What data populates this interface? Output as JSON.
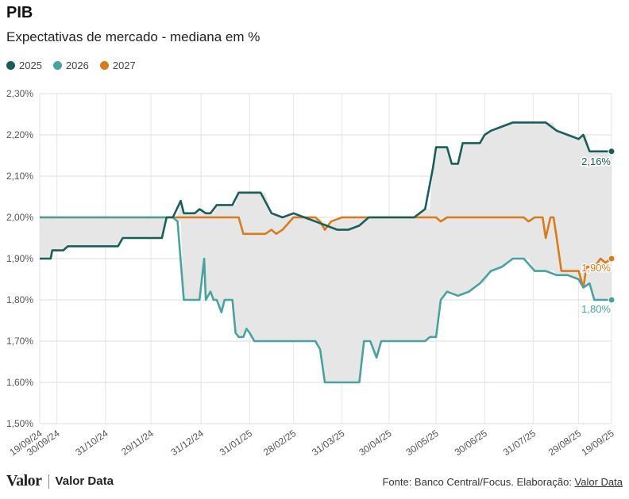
{
  "header": {
    "title": "PIB",
    "subtitle": "Expectativas de mercado - mediana em %"
  },
  "legend": [
    {
      "label": "2025",
      "color": "#1a5e58"
    },
    {
      "label": "2026",
      "color": "#48a3a0"
    },
    {
      "label": "2027",
      "color": "#d97b1a"
    }
  ],
  "footer": {
    "logo_valor": "Valor",
    "logo_valordata": "Valor Data",
    "source_prefix": "Fonte: Banco Central/Focus. Elaboração: ",
    "source_link": "Valor Data"
  },
  "chart_data": {
    "type": "line",
    "title": "PIB",
    "subtitle": "Expectativas de mercado - mediana em %",
    "ylim": [
      1.5,
      2.3
    ],
    "yticks": [
      "1,50%",
      "1,60%",
      "1,70%",
      "1,80%",
      "1,90%",
      "2,00%",
      "2,10%",
      "2,20%",
      "2,30%"
    ],
    "ytick_values": [
      1.5,
      1.6,
      1.7,
      1.8,
      1.9,
      2.0,
      2.1,
      2.2,
      2.3
    ],
    "xlim": [
      "2024-09-19",
      "2025-09-19"
    ],
    "xticks": [
      "19/09/24",
      "30/09/24",
      "31/10/24",
      "29/11/24",
      "31/12/24",
      "31/01/25",
      "28/02/25",
      "31/03/25",
      "30/04/25",
      "30/05/25",
      "30/06/25",
      "31/07/25",
      "29/08/25",
      "19/09/25"
    ],
    "xtick_dates": [
      "2024-09-19",
      "2024-09-30",
      "2024-10-31",
      "2024-11-29",
      "2024-12-31",
      "2025-01-31",
      "2025-02-28",
      "2025-03-31",
      "2025-04-30",
      "2025-05-30",
      "2025-06-30",
      "2025-07-31",
      "2025-08-29",
      "2025-09-19"
    ],
    "grid": true,
    "legend_position": "top-left",
    "shaded_band": "range between min and max of series",
    "end_labels": {
      "2025": "2,16%",
      "2026": "1,80%",
      "2027": "1,90%"
    },
    "series": [
      {
        "name": "2025",
        "color": "#1a5e58",
        "points": [
          [
            "2024-09-19",
            1.9
          ],
          [
            "2024-09-26",
            1.9
          ],
          [
            "2024-09-27",
            1.92
          ],
          [
            "2024-10-01",
            1.92
          ],
          [
            "2024-10-04",
            1.92
          ],
          [
            "2024-10-07",
            1.93
          ],
          [
            "2024-10-18",
            1.93
          ],
          [
            "2024-10-21",
            1.93
          ],
          [
            "2024-11-01",
            1.93
          ],
          [
            "2024-11-08",
            1.93
          ],
          [
            "2024-11-11",
            1.95
          ],
          [
            "2024-11-29",
            1.95
          ],
          [
            "2024-12-06",
            1.95
          ],
          [
            "2024-12-09",
            2.0
          ],
          [
            "2024-12-13",
            2.0
          ],
          [
            "2024-12-18",
            2.04
          ],
          [
            "2024-12-20",
            2.01
          ],
          [
            "2024-12-27",
            2.01
          ],
          [
            "2024-12-30",
            2.02
          ],
          [
            "2025-01-03",
            2.01
          ],
          [
            "2025-01-06",
            2.01
          ],
          [
            "2025-01-10",
            2.03
          ],
          [
            "2025-01-20",
            2.03
          ],
          [
            "2025-01-24",
            2.06
          ],
          [
            "2025-01-29",
            2.06
          ],
          [
            "2025-02-07",
            2.06
          ],
          [
            "2025-02-14",
            2.01
          ],
          [
            "2025-02-21",
            2.0
          ],
          [
            "2025-02-28",
            2.01
          ],
          [
            "2025-03-07",
            2.0
          ],
          [
            "2025-03-14",
            1.99
          ],
          [
            "2025-03-21",
            1.98
          ],
          [
            "2025-03-28",
            1.97
          ],
          [
            "2025-04-04",
            1.97
          ],
          [
            "2025-04-11",
            1.98
          ],
          [
            "2025-04-17",
            2.0
          ],
          [
            "2025-05-16",
            2.0
          ],
          [
            "2025-05-23",
            2.02
          ],
          [
            "2025-05-28",
            2.12
          ],
          [
            "2025-05-30",
            2.17
          ],
          [
            "2025-06-06",
            2.17
          ],
          [
            "2025-06-09",
            2.13
          ],
          [
            "2025-06-13",
            2.13
          ],
          [
            "2025-06-16",
            2.18
          ],
          [
            "2025-06-27",
            2.18
          ],
          [
            "2025-06-30",
            2.2
          ],
          [
            "2025-07-04",
            2.21
          ],
          [
            "2025-07-11",
            2.22
          ],
          [
            "2025-07-18",
            2.23
          ],
          [
            "2025-07-25",
            2.23
          ],
          [
            "2025-08-01",
            2.23
          ],
          [
            "2025-08-08",
            2.23
          ],
          [
            "2025-08-15",
            2.21
          ],
          [
            "2025-08-22",
            2.2
          ],
          [
            "2025-08-29",
            2.19
          ],
          [
            "2025-09-01",
            2.2
          ],
          [
            "2025-09-05",
            2.16
          ],
          [
            "2025-09-12",
            2.16
          ],
          [
            "2025-09-19",
            2.16
          ]
        ]
      },
      {
        "name": "2026",
        "color": "#48a3a0",
        "points": [
          [
            "2024-09-19",
            2.0
          ],
          [
            "2024-12-13",
            2.0
          ],
          [
            "2024-12-16",
            1.99
          ],
          [
            "2024-12-20",
            1.8
          ],
          [
            "2024-12-27",
            1.8
          ],
          [
            "2024-12-30",
            1.8
          ],
          [
            "2025-01-02",
            1.9
          ],
          [
            "2025-01-03",
            1.8
          ],
          [
            "2025-01-06",
            1.82
          ],
          [
            "2025-01-08",
            1.8
          ],
          [
            "2025-01-10",
            1.8
          ],
          [
            "2025-01-13",
            1.77
          ],
          [
            "2025-01-15",
            1.8
          ],
          [
            "2025-01-20",
            1.8
          ],
          [
            "2025-01-22",
            1.72
          ],
          [
            "2025-01-24",
            1.71
          ],
          [
            "2025-01-27",
            1.71
          ],
          [
            "2025-01-29",
            1.73
          ],
          [
            "2025-01-31",
            1.72
          ],
          [
            "2025-02-03",
            1.7
          ],
          [
            "2025-02-07",
            1.7
          ],
          [
            "2025-03-14",
            1.7
          ],
          [
            "2025-03-17",
            1.68
          ],
          [
            "2025-03-20",
            1.6
          ],
          [
            "2025-04-11",
            1.6
          ],
          [
            "2025-04-14",
            1.7
          ],
          [
            "2025-04-18",
            1.7
          ],
          [
            "2025-04-22",
            1.66
          ],
          [
            "2025-04-25",
            1.7
          ],
          [
            "2025-05-02",
            1.7
          ],
          [
            "2025-05-05",
            1.7
          ],
          [
            "2025-05-09",
            1.7
          ],
          [
            "2025-05-23",
            1.7
          ],
          [
            "2025-05-26",
            1.71
          ],
          [
            "2025-05-30",
            1.71
          ],
          [
            "2025-06-02",
            1.8
          ],
          [
            "2025-06-06",
            1.82
          ],
          [
            "2025-06-13",
            1.81
          ],
          [
            "2025-06-20",
            1.82
          ],
          [
            "2025-06-27",
            1.84
          ],
          [
            "2025-07-04",
            1.87
          ],
          [
            "2025-07-11",
            1.88
          ],
          [
            "2025-07-18",
            1.9
          ],
          [
            "2025-07-25",
            1.9
          ],
          [
            "2025-08-01",
            1.87
          ],
          [
            "2025-08-08",
            1.87
          ],
          [
            "2025-08-15",
            1.86
          ],
          [
            "2025-08-22",
            1.86
          ],
          [
            "2025-08-29",
            1.85
          ],
          [
            "2025-09-01",
            1.83
          ],
          [
            "2025-09-05",
            1.84
          ],
          [
            "2025-09-08",
            1.8
          ],
          [
            "2025-09-12",
            1.8
          ],
          [
            "2025-09-19",
            1.8
          ]
        ]
      },
      {
        "name": "2027",
        "color": "#d97b1a",
        "points": [
          [
            "2024-09-19",
            2.0
          ],
          [
            "2025-01-24",
            2.0
          ],
          [
            "2025-01-27",
            1.96
          ],
          [
            "2025-02-03",
            1.96
          ],
          [
            "2025-02-07",
            1.96
          ],
          [
            "2025-02-10",
            1.96
          ],
          [
            "2025-02-14",
            1.97
          ],
          [
            "2025-02-17",
            1.96
          ],
          [
            "2025-02-21",
            1.97
          ],
          [
            "2025-02-28",
            2.0
          ],
          [
            "2025-03-14",
            2.0
          ],
          [
            "2025-03-17",
            1.99
          ],
          [
            "2025-03-20",
            1.97
          ],
          [
            "2025-03-24",
            1.99
          ],
          [
            "2025-03-31",
            2.0
          ],
          [
            "2025-05-30",
            2.0
          ],
          [
            "2025-06-02",
            1.99
          ],
          [
            "2025-06-06",
            2.0
          ],
          [
            "2025-07-25",
            2.0
          ],
          [
            "2025-07-28",
            1.99
          ],
          [
            "2025-08-01",
            2.0
          ],
          [
            "2025-08-06",
            2.0
          ],
          [
            "2025-08-08",
            1.95
          ],
          [
            "2025-08-11",
            2.0
          ],
          [
            "2025-08-13",
            2.0
          ],
          [
            "2025-08-15",
            1.95
          ],
          [
            "2025-08-18",
            1.87
          ],
          [
            "2025-08-29",
            1.87
          ],
          [
            "2025-09-01",
            1.83
          ],
          [
            "2025-09-03",
            1.88
          ],
          [
            "2025-09-08",
            1.88
          ],
          [
            "2025-09-12",
            1.9
          ],
          [
            "2025-09-15",
            1.89
          ],
          [
            "2025-09-19",
            1.9
          ]
        ]
      }
    ]
  }
}
